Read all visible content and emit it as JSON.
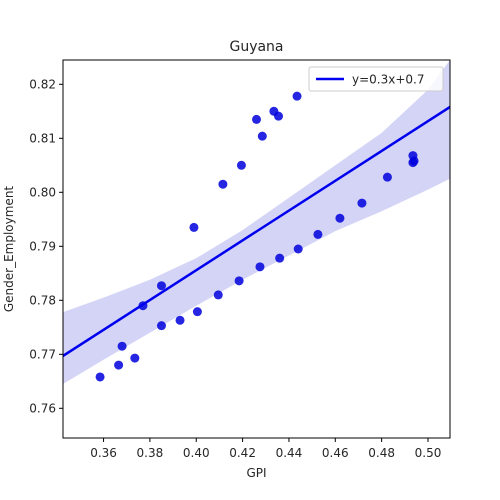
{
  "chart_data": {
    "type": "scatter",
    "title": "Guyana",
    "xlabel": "GPI",
    "ylabel": "Gender_Employment",
    "xlim": [
      0.3425,
      0.5095
    ],
    "ylim": [
      0.7545,
      0.8245
    ],
    "x_ticks": [
      0.36,
      0.38,
      0.4,
      0.42,
      0.44,
      0.46,
      0.48,
      0.5
    ],
    "x_tick_labels": [
      "0.36",
      "0.38",
      "0.40",
      "0.42",
      "0.44",
      "0.46",
      "0.48",
      "0.50"
    ],
    "y_ticks": [
      0.76,
      0.77,
      0.78,
      0.79,
      0.8,
      0.81,
      0.82
    ],
    "y_tick_labels": [
      "0.76",
      "0.77",
      "0.78",
      "0.79",
      "0.80",
      "0.81",
      "0.82"
    ],
    "grid": false,
    "legend_position": "top-right",
    "point_color": "#0000dd",
    "line_color": "#0000ee",
    "band_color": "#d4d4f7",
    "points": [
      {
        "x": 0.3585,
        "y": 0.7658
      },
      {
        "x": 0.3665,
        "y": 0.768
      },
      {
        "x": 0.368,
        "y": 0.7715
      },
      {
        "x": 0.3735,
        "y": 0.7693
      },
      {
        "x": 0.377,
        "y": 0.779
      },
      {
        "x": 0.385,
        "y": 0.7827
      },
      {
        "x": 0.385,
        "y": 0.7753
      },
      {
        "x": 0.393,
        "y": 0.7763
      },
      {
        "x": 0.399,
        "y": 0.7935
      },
      {
        "x": 0.4005,
        "y": 0.7779
      },
      {
        "x": 0.4095,
        "y": 0.781
      },
      {
        "x": 0.4115,
        "y": 0.8015
      },
      {
        "x": 0.4185,
        "y": 0.7836
      },
      {
        "x": 0.4195,
        "y": 0.805
      },
      {
        "x": 0.426,
        "y": 0.8135
      },
      {
        "x": 0.4275,
        "y": 0.7862
      },
      {
        "x": 0.4285,
        "y": 0.8104
      },
      {
        "x": 0.4335,
        "y": 0.815
      },
      {
        "x": 0.4355,
        "y": 0.8141
      },
      {
        "x": 0.436,
        "y": 0.7878
      },
      {
        "x": 0.4435,
        "y": 0.8178
      },
      {
        "x": 0.444,
        "y": 0.7895
      },
      {
        "x": 0.4525,
        "y": 0.7922
      },
      {
        "x": 0.462,
        "y": 0.7952
      },
      {
        "x": 0.4715,
        "y": 0.798
      },
      {
        "x": 0.4825,
        "y": 0.8028
      },
      {
        "x": 0.4935,
        "y": 0.8068
      },
      {
        "x": 0.4935,
        "y": 0.8055
      },
      {
        "x": 0.494,
        "y": 0.8058
      }
    ],
    "regression": {
      "label": "y=0.3x+0.7",
      "line": [
        {
          "x": 0.3425,
          "y": 0.7697
        },
        {
          "x": 0.5095,
          "y": 0.8158
        }
      ],
      "band_upper": [
        {
          "x": 0.3425,
          "y": 0.7778
        },
        {
          "x": 0.36,
          "y": 0.7805
        },
        {
          "x": 0.38,
          "y": 0.7838
        },
        {
          "x": 0.4,
          "y": 0.7878
        },
        {
          "x": 0.42,
          "y": 0.793
        },
        {
          "x": 0.44,
          "y": 0.799
        },
        {
          "x": 0.46,
          "y": 0.805
        },
        {
          "x": 0.48,
          "y": 0.811
        },
        {
          "x": 0.5,
          "y": 0.819
        },
        {
          "x": 0.5095,
          "y": 0.8245
        }
      ],
      "band_lower": [
        {
          "x": 0.3425,
          "y": 0.7645
        },
        {
          "x": 0.36,
          "y": 0.769
        },
        {
          "x": 0.38,
          "y": 0.774
        },
        {
          "x": 0.4,
          "y": 0.779
        },
        {
          "x": 0.42,
          "y": 0.7838
        },
        {
          "x": 0.44,
          "y": 0.7883
        },
        {
          "x": 0.46,
          "y": 0.7928
        },
        {
          "x": 0.48,
          "y": 0.7965
        },
        {
          "x": 0.5,
          "y": 0.8005
        },
        {
          "x": 0.5095,
          "y": 0.8025
        }
      ]
    }
  }
}
